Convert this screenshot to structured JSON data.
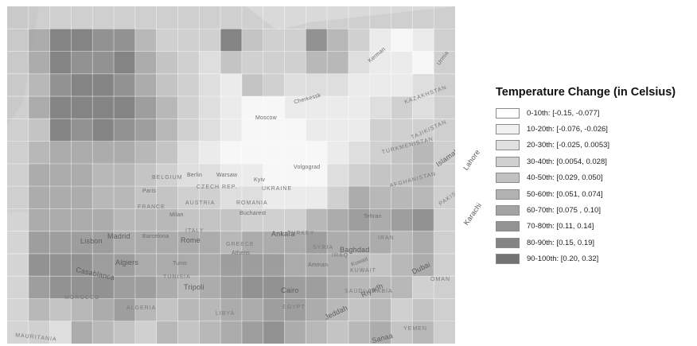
{
  "legend": {
    "title": "Temperature Change (in Celsius)",
    "items": [
      {
        "label": "0-10th: [-0.15, -0.077]",
        "color": "#ffffff"
      },
      {
        "label": "10-20th: [-0.076, -0.026]",
        "color": "#f0f0f0"
      },
      {
        "label": "20-30th: [-0.025, 0.0053]",
        "color": "#e0e0e0"
      },
      {
        "label": "30-40th: [0.0054, 0.028]",
        "color": "#d0d0d0"
      },
      {
        "label": "40-50th: [0.029, 0.050]",
        "color": "#c1c1c1"
      },
      {
        "label": "50-60th: [0.051, 0.074]",
        "color": "#b2b2b2"
      },
      {
        "label": "60-70th: [0.075 , 0.10]",
        "color": "#a3a3a3"
      },
      {
        "label": "70-80th: [0.11, 0.14]",
        "color": "#939393"
      },
      {
        "label": "80-90th: [0.15, 0.19]",
        "color": "#848484"
      },
      {
        "label": "90-100th: [0.20, 0.32]",
        "color": "#737373"
      }
    ]
  },
  "grid": {
    "cols": 21,
    "rows": 15,
    "blank_value": -1,
    "class_values": [
      [
        -1,
        -1,
        -1,
        -1,
        -1,
        -1,
        -1,
        -1,
        -1,
        -1,
        -1,
        -1,
        -1,
        -1,
        -1,
        -1,
        -1,
        -1,
        -1,
        -1,
        -1
      ],
      [
        -1,
        6,
        9,
        9,
        8,
        8,
        5,
        3,
        3,
        3,
        9,
        4,
        3,
        3,
        8,
        5,
        3,
        1,
        0,
        1,
        -1
      ],
      [
        -1,
        6,
        9,
        8,
        8,
        9,
        6,
        4,
        3,
        2,
        4,
        3,
        3,
        3,
        5,
        5,
        2,
        1,
        1,
        0,
        -1
      ],
      [
        -1,
        5,
        8,
        9,
        9,
        8,
        6,
        4,
        3,
        2,
        1,
        4,
        3,
        2,
        2,
        2,
        1,
        1,
        1,
        2,
        -1
      ],
      [
        -1,
        6,
        9,
        9,
        9,
        9,
        7,
        5,
        3,
        2,
        1,
        0,
        0,
        1,
        1,
        1,
        1,
        2,
        3,
        2,
        -1
      ],
      [
        -1,
        4,
        9,
        8,
        9,
        8,
        7,
        5,
        3,
        2,
        1,
        0,
        0,
        0,
        1,
        1,
        1,
        3,
        3,
        3,
        -1
      ],
      [
        -1,
        5,
        6,
        6,
        6,
        6,
        5,
        4,
        2,
        1,
        0,
        0,
        0,
        0,
        0,
        1,
        2,
        3,
        4,
        5,
        -1
      ],
      [
        -1,
        6,
        6,
        6,
        5,
        5,
        4,
        3,
        2,
        2,
        1,
        1,
        0,
        0,
        0,
        2,
        3,
        4,
        4,
        5,
        -1
      ],
      [
        -1,
        6,
        6,
        6,
        5,
        5,
        4,
        4,
        3,
        3,
        2,
        2,
        1,
        1,
        1,
        3,
        6,
        5,
        5,
        5,
        -1
      ],
      [
        -1,
        6,
        6,
        6,
        6,
        5,
        5,
        5,
        4,
        4,
        4,
        3,
        3,
        3,
        5,
        6,
        7,
        6,
        7,
        8,
        -1
      ],
      [
        -1,
        7,
        7,
        7,
        7,
        6,
        6,
        6,
        6,
        6,
        5,
        6,
        6,
        6,
        7,
        6,
        6,
        6,
        5,
        6,
        -1
      ],
      [
        -1,
        8,
        8,
        8,
        7,
        7,
        6,
        6,
        6,
        6,
        7,
        7,
        7,
        6,
        6,
        6,
        5,
        4,
        5,
        6,
        -1
      ],
      [
        -1,
        7,
        8,
        8,
        8,
        7,
        7,
        6,
        5,
        6,
        7,
        8,
        8,
        7,
        7,
        6,
        5,
        5,
        5,
        3,
        -1
      ],
      [
        -1,
        5,
        4,
        5,
        6,
        7,
        5,
        4,
        5,
        5,
        6,
        6,
        7,
        7,
        6,
        5,
        4,
        5,
        3,
        4,
        -1
      ],
      [
        -1,
        3,
        2,
        6,
        5,
        4,
        3,
        5,
        4,
        5,
        6,
        7,
        8,
        6,
        5,
        4,
        5,
        6,
        4,
        5,
        -1
      ]
    ]
  },
  "places": {
    "lisbon": "Lisbon",
    "madrid": "Madrid",
    "barcelona": "Barcelona",
    "rome": "Rome",
    "milan": "Milan",
    "paris": "Paris",
    "belgium": "BELGIUM",
    "berlin": "Berlin",
    "warsaw": "Warsaw",
    "czech": "CZECH REP.",
    "austria": "AUSTRIA",
    "france": "FRANCE",
    "romania": "ROMANIA",
    "bucharest": "Bucharest",
    "italy": "ITALY",
    "kyiv": "Kyiv",
    "ukraine": "UKRAINE",
    "volgograd": "Volgograd",
    "ankara": "Ankara",
    "turkey": "TURKEY",
    "athens": "Athens",
    "greece": "GREECE",
    "algiers": "Algiers",
    "tunis": "Tunis",
    "tunisia": "TUNISIA",
    "tripoli": "Tripoli",
    "casablanca": "Casablanca",
    "morocco": "MOROCCO",
    "algeria": "ALGERIA",
    "libya": "LIBYA",
    "cairo": "Cairo",
    "egypt": "EGYPT",
    "amman": "Amman",
    "syria": "SYRIA",
    "iraq": "IRAQ",
    "baghdad": "Baghdad",
    "tehran": "Tehran",
    "iran": "IRAN",
    "kuwait": "Kuwait",
    "riyadh": "Riyadh",
    "saudi": "SAUDI ARABIA",
    "jeddah": "Jeddah",
    "sanaa": "Sanaa",
    "yemen": "YEMEN",
    "dubai": "Dubai",
    "oman": "OMAN",
    "mauritania": "MAURITANIA",
    "islamabad": "Islamabad",
    "lahore": "Lahore",
    "karachi": "Karachi",
    "pakistan": "PAKISTAN",
    "afghanistan": "AFGHANISTAN",
    "turkmenistan": "TURKMENISTAN",
    "tajikistan": "TAJIKISTAN",
    "kazakhstan": "KAZAKHSTAN",
    "moscow": "Moscow",
    "urmia": "Urmia",
    "kerman": "Kerman",
    "cherkessk": "Cherkessk",
    "kuwait_state": "KUWAIT"
  }
}
